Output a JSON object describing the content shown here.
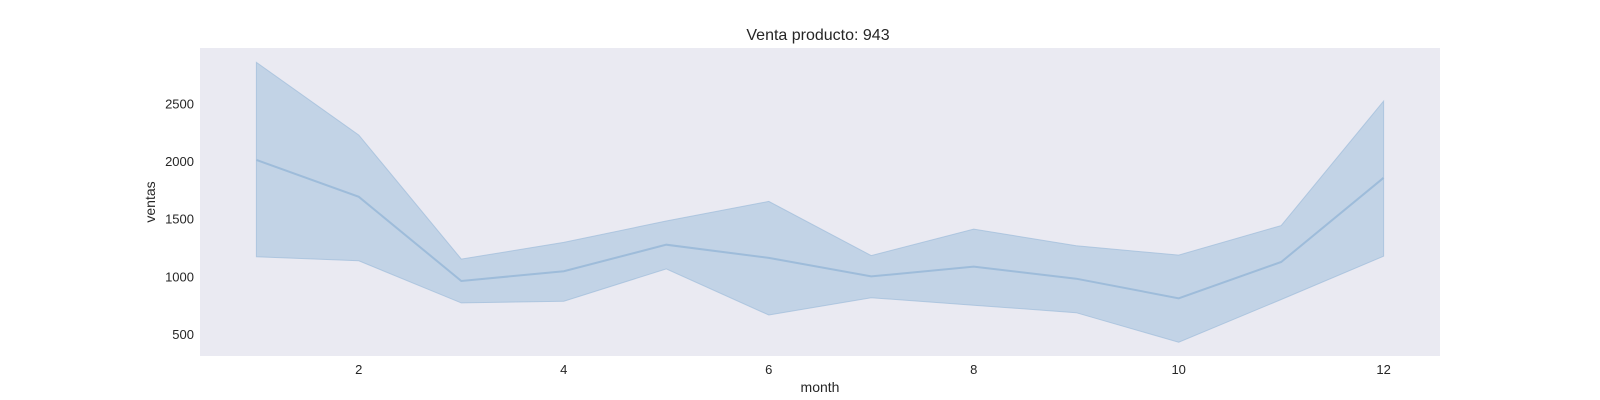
{
  "chart_data": {
    "type": "line",
    "title": "Venta producto: 943",
    "xlabel": "month",
    "ylabel": "ventas",
    "xlim": [
      0.45,
      12.55
    ],
    "ylim": [
      310,
      2980
    ],
    "x_ticks": [
      2,
      4,
      6,
      8,
      10,
      12
    ],
    "y_ticks": [
      500,
      1000,
      1500,
      2000,
      2500
    ],
    "grid": false,
    "legend": "none",
    "colors": {
      "plot_background": "#eaeaf2",
      "line": "#9ebcda",
      "band": "#c2d3e6"
    },
    "series": [
      {
        "x": [
          1,
          2,
          3,
          4,
          5,
          6,
          7,
          8,
          9,
          10,
          11,
          12
        ],
        "values": [
          2010,
          1690,
          960,
          1045,
          1275,
          1160,
          1000,
          1085,
          980,
          810,
          1125,
          1855
        ],
        "lower": [
          1170,
          1135,
          770,
          785,
          1065,
          665,
          815,
          750,
          685,
          430,
          800,
          1175
        ],
        "upper": [
          2855,
          2225,
          1150,
          1295,
          1480,
          1650,
          1180,
          1410,
          1265,
          1185,
          1440,
          2520
        ]
      }
    ]
  }
}
